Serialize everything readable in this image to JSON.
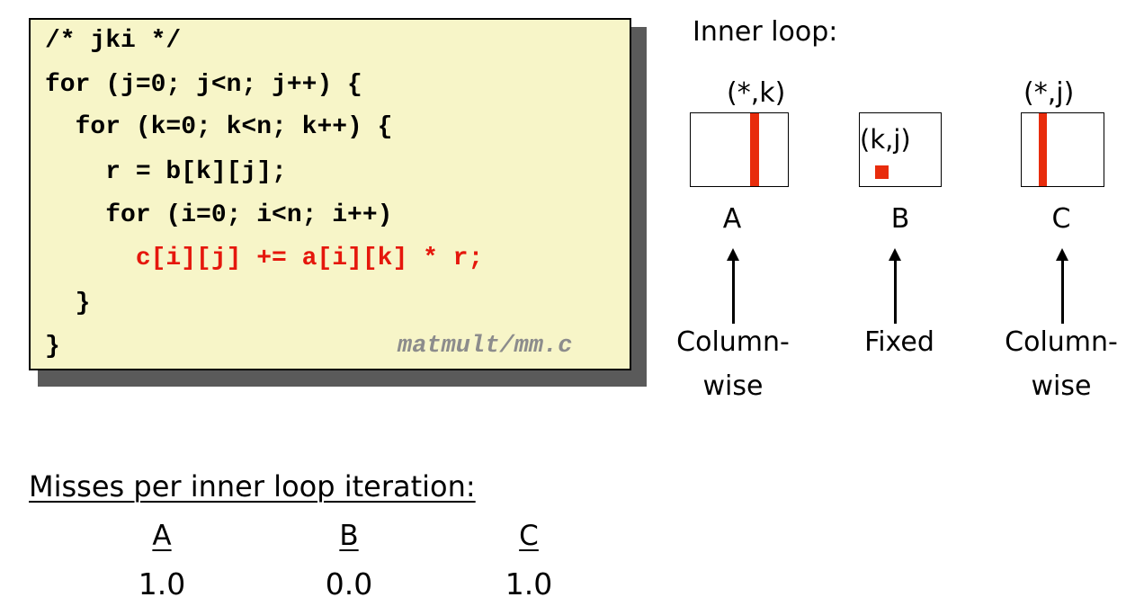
{
  "code": {
    "lines": [
      "/* jki */",
      "for (j=0; j<n; j++) {",
      "  for (k=0; k<n; k++) {",
      "    r = b[k][j];",
      "    for (i=0; i<n; i++)",
      "      c[i][j] += a[i][k] * r;",
      "  }",
      "}"
    ],
    "file": "matmult/mm.c",
    "highlight_color": "#e5170c",
    "background_color": "#f7f5c8"
  },
  "inner_loop": {
    "title": "Inner loop:",
    "matrices": [
      {
        "name": "A",
        "index_label": "(*,k)",
        "pattern": "Column-",
        "pattern2": "wise"
      },
      {
        "name": "B",
        "index_label": "(k,j)",
        "pattern": "Fixed",
        "pattern2": ""
      },
      {
        "name": "C",
        "index_label": "(*,j)",
        "pattern": "Column-",
        "pattern2": "wise"
      }
    ],
    "access_color": "#e82c0c"
  },
  "misses": {
    "title": "Misses per inner loop iteration:",
    "headers": [
      "A",
      "B",
      "C"
    ],
    "values": [
      "1.0",
      "0.0",
      "1.0"
    ]
  }
}
